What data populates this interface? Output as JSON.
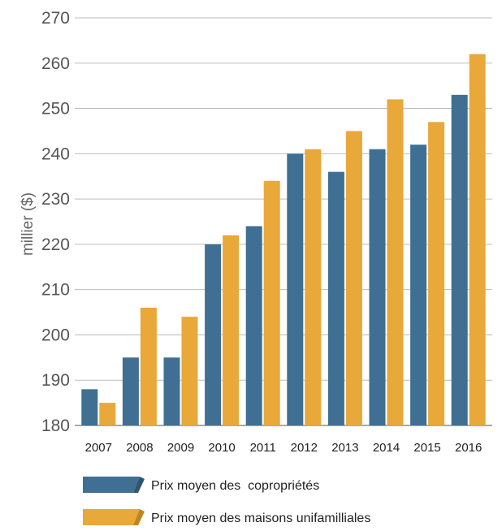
{
  "chart_data": {
    "type": "bar",
    "title": "",
    "xlabel": "",
    "ylabel": "millier ($)",
    "ylim": [
      180,
      270
    ],
    "yticks": [
      180,
      190,
      200,
      210,
      220,
      230,
      240,
      250,
      260,
      270
    ],
    "categories": [
      "2007",
      "2008",
      "2009",
      "2010",
      "2011",
      "2012",
      "2013",
      "2014",
      "2015",
      "2016"
    ],
    "series": [
      {
        "name": "Prix moyen des  copropriétés",
        "color": "#3f7093",
        "values": [
          188,
          195,
          195,
          220,
          224,
          240,
          236,
          241,
          242,
          253
        ]
      },
      {
        "name": "Prix moyen des maisons unifamilliales",
        "color": "#e8a83a",
        "values": [
          185,
          206,
          204,
          222,
          234,
          241,
          245,
          252,
          247,
          262
        ]
      }
    ],
    "grid": true,
    "legend_position": "bottom"
  }
}
